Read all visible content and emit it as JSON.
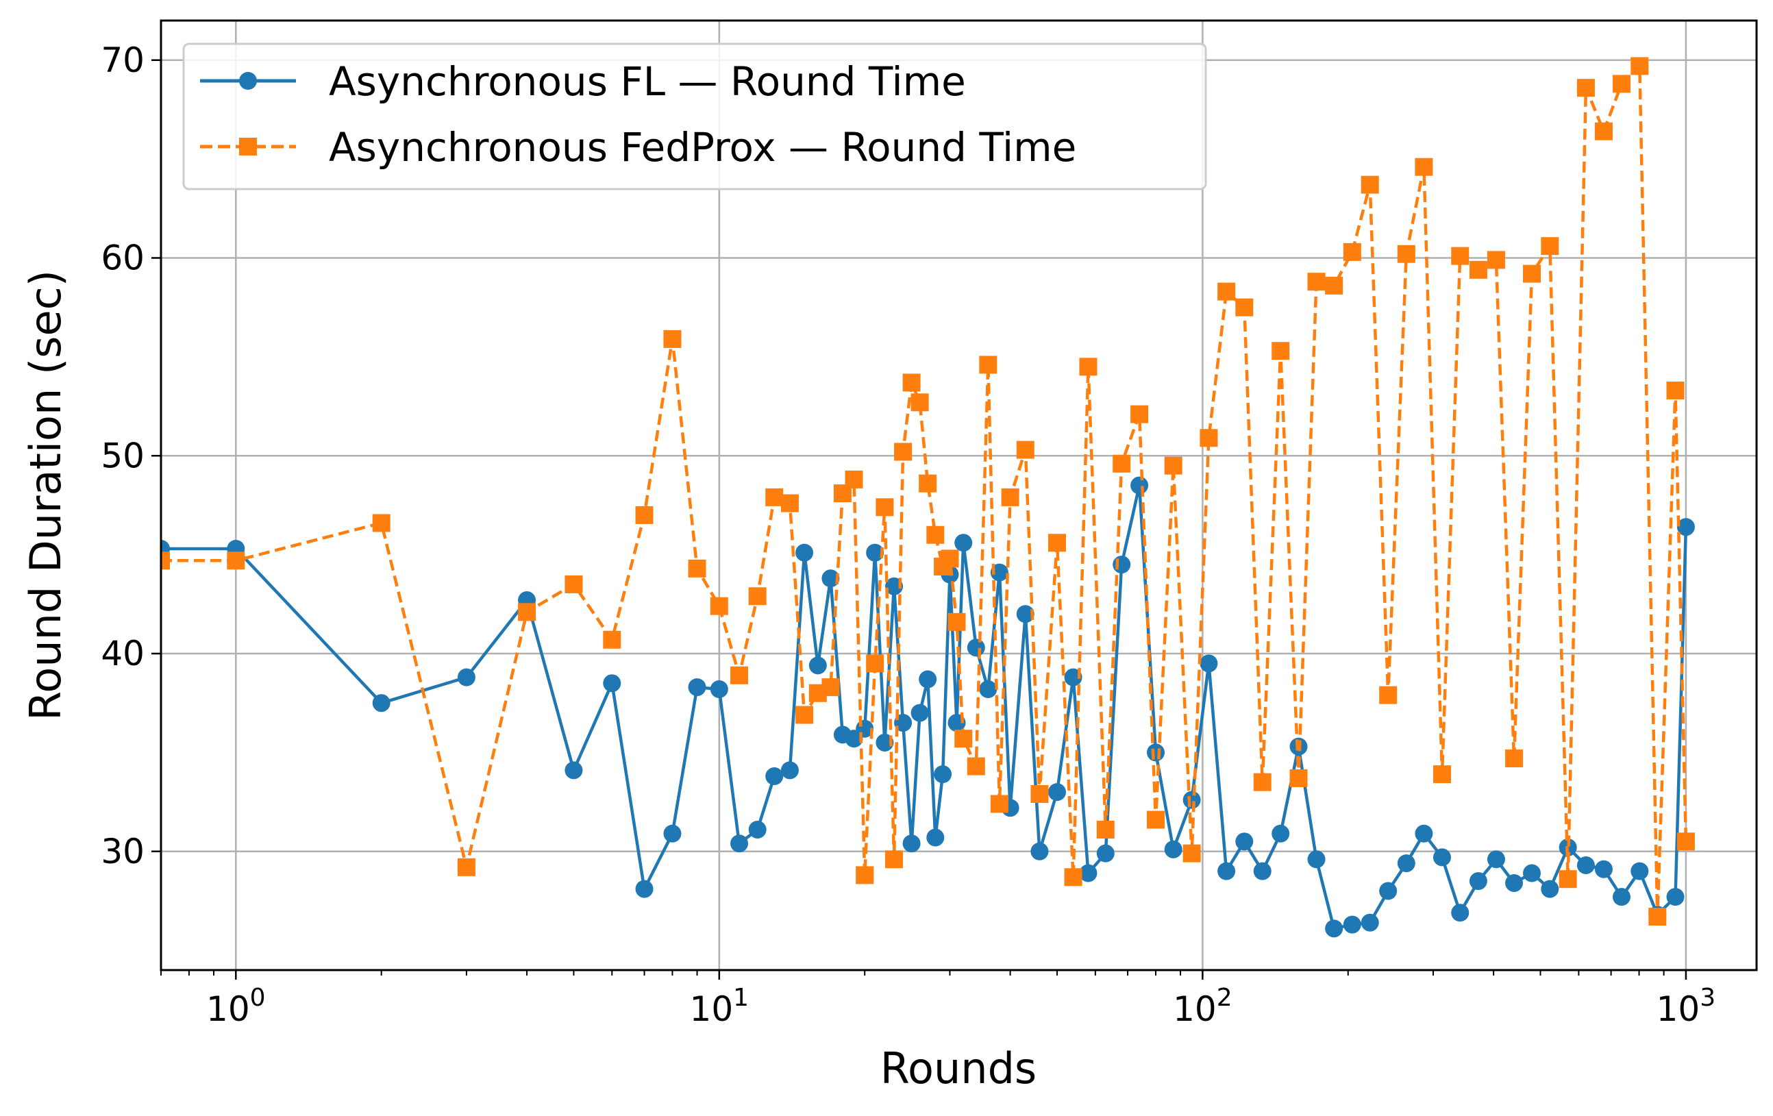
{
  "chart_data": {
    "type": "line",
    "title": "",
    "xlabel": "Rounds",
    "ylabel": "Round Duration (sec)",
    "xscale": "log",
    "xlim": [
      0.7,
      1400
    ],
    "ylim": [
      24,
      72
    ],
    "grid": true,
    "legend_position": "top-left",
    "x_ticks": [
      {
        "base": "10",
        "exp": "0",
        "value": 1
      },
      {
        "base": "10",
        "exp": "1",
        "value": 10
      },
      {
        "base": "10",
        "exp": "2",
        "value": 100
      },
      {
        "base": "10",
        "exp": "3",
        "value": 1000
      }
    ],
    "y_ticks": [
      {
        "label": "30",
        "value": 30
      },
      {
        "label": "40",
        "value": 40
      },
      {
        "label": "50",
        "value": 50
      },
      {
        "label": "60",
        "value": 60
      },
      {
        "label": "70",
        "value": 70
      }
    ],
    "series": [
      {
        "name": "Asynchronous FL — Round Time",
        "color": "#1f77b4",
        "line_style": "solid",
        "marker": "circle",
        "x": [
          0.7,
          1,
          2,
          3,
          4,
          5,
          6,
          7,
          8,
          9,
          10,
          11,
          12,
          13,
          14,
          15,
          16,
          17,
          18,
          19,
          20,
          21,
          22,
          23,
          24,
          25,
          26,
          27,
          28,
          29,
          30,
          31,
          32,
          34,
          36,
          38,
          40,
          43,
          46,
          50,
          54,
          58,
          63,
          68,
          74,
          80,
          87,
          95,
          103,
          112,
          122,
          133,
          145,
          158,
          172,
          187,
          204,
          222,
          242,
          264,
          287,
          313,
          341,
          372,
          405,
          441,
          480,
          523,
          570,
          621,
          676,
          736,
          802,
          873,
          951,
          1000
        ],
        "values": [
          45.3,
          45.3,
          37.5,
          38.8,
          42.7,
          34.1,
          38.5,
          28.1,
          30.9,
          38.3,
          38.2,
          30.4,
          31.1,
          33.8,
          34.1,
          45.1,
          39.4,
          43.8,
          35.9,
          35.7,
          36.2,
          45.1,
          35.5,
          43.4,
          36.5,
          30.4,
          37.0,
          38.7,
          30.7,
          33.9,
          44.0,
          36.5,
          45.6,
          40.3,
          38.2,
          44.1,
          32.2,
          42.0,
          30.0,
          33.0,
          38.8,
          28.9,
          29.9,
          44.5,
          48.5,
          35.0,
          30.1,
          32.6,
          39.5,
          29.0,
          30.5,
          29.0,
          30.9,
          35.3,
          29.6,
          26.1,
          26.3,
          26.4,
          28.0,
          29.4,
          30.9,
          29.7,
          26.9,
          28.5,
          29.6,
          28.4,
          28.9,
          28.1,
          30.2,
          29.3,
          29.1,
          27.7,
          29.0,
          26.8,
          27.7,
          46.4
        ]
      },
      {
        "name": "Asynchronous FedProx — Round Time",
        "color": "#ff7f0e",
        "line_style": "dashed",
        "marker": "square",
        "x": [
          0.7,
          1,
          2,
          3,
          4,
          5,
          6,
          7,
          8,
          9,
          10,
          11,
          12,
          13,
          14,
          15,
          16,
          17,
          18,
          19,
          20,
          21,
          22,
          23,
          24,
          25,
          26,
          27,
          28,
          29,
          30,
          31,
          32,
          34,
          36,
          38,
          40,
          43,
          46,
          50,
          54,
          58,
          63,
          68,
          74,
          80,
          87,
          95,
          103,
          112,
          122,
          133,
          145,
          158,
          172,
          187,
          204,
          222,
          242,
          264,
          287,
          313,
          341,
          372,
          405,
          441,
          480,
          523,
          570,
          621,
          676,
          736,
          802,
          873,
          951,
          1000
        ],
        "values": [
          44.7,
          44.7,
          46.6,
          29.2,
          42.1,
          43.5,
          40.7,
          47.0,
          55.9,
          44.3,
          42.4,
          38.9,
          42.9,
          47.9,
          47.6,
          36.9,
          38.0,
          38.3,
          48.1,
          48.8,
          28.8,
          39.5,
          47.4,
          29.6,
          50.2,
          53.7,
          52.7,
          48.6,
          46.0,
          44.4,
          44.8,
          41.6,
          35.7,
          34.3,
          54.6,
          32.4,
          47.9,
          50.3,
          32.9,
          45.6,
          28.7,
          54.5,
          31.1,
          49.6,
          52.1,
          31.6,
          49.5,
          29.9,
          50.9,
          58.3,
          57.5,
          33.5,
          55.3,
          33.7,
          58.8,
          58.6,
          60.3,
          63.7,
          37.9,
          60.2,
          64.6,
          33.9,
          60.1,
          59.4,
          59.9,
          34.7,
          59.2,
          60.6,
          28.6,
          68.6,
          66.4,
          68.8,
          69.7,
          26.7,
          53.3,
          30.5
        ]
      }
    ]
  }
}
